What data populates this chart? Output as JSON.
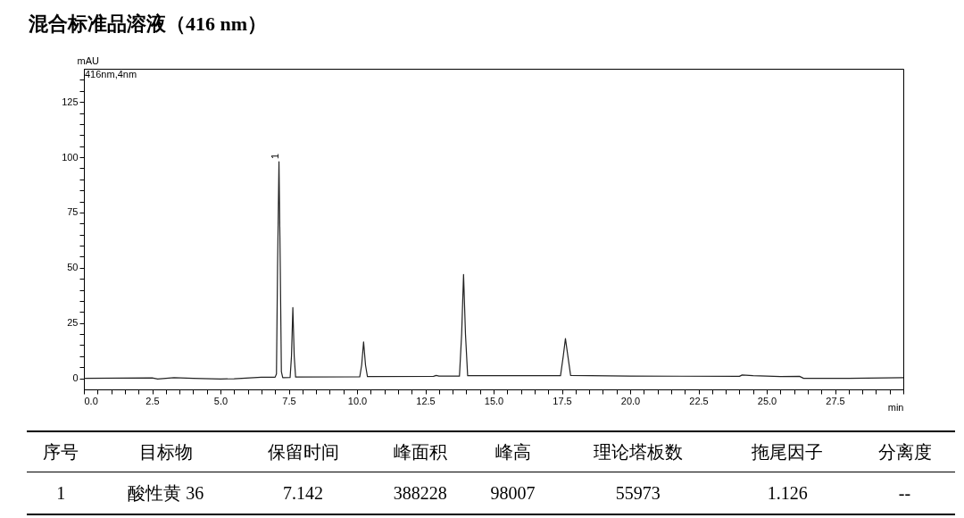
{
  "chart_data": {
    "type": "line",
    "title": "混合标准品溶液（416 nm）",
    "xlabel": "min",
    "ylabel": "mAU",
    "xlim": [
      0,
      30
    ],
    "ylim": [
      -5,
      140
    ],
    "xticks": [
      {
        "value": 0,
        "label": "0.0"
      },
      {
        "value": 0.5,
        "label": null
      },
      {
        "value": 1,
        "label": null
      },
      {
        "value": 1.5,
        "label": null
      },
      {
        "value": 2,
        "label": null
      },
      {
        "value": 2.5,
        "label": "2.5"
      },
      {
        "value": 3,
        "label": null
      },
      {
        "value": 3.5,
        "label": null
      },
      {
        "value": 4,
        "label": null
      },
      {
        "value": 4.5,
        "label": null
      },
      {
        "value": 5,
        "label": "5.0"
      },
      {
        "value": 5.5,
        "label": null
      },
      {
        "value": 6,
        "label": null
      },
      {
        "value": 6.5,
        "label": null
      },
      {
        "value": 7,
        "label": null
      },
      {
        "value": 7.5,
        "label": "7.5"
      },
      {
        "value": 8,
        "label": null
      },
      {
        "value": 8.5,
        "label": null
      },
      {
        "value": 9,
        "label": null
      },
      {
        "value": 9.5,
        "label": null
      },
      {
        "value": 10,
        "label": "10.0"
      },
      {
        "value": 10.5,
        "label": null
      },
      {
        "value": 11,
        "label": null
      },
      {
        "value": 11.5,
        "label": null
      },
      {
        "value": 12,
        "label": null
      },
      {
        "value": 12.5,
        "label": "12.5"
      },
      {
        "value": 13,
        "label": null
      },
      {
        "value": 13.5,
        "label": null
      },
      {
        "value": 14,
        "label": null
      },
      {
        "value": 14.5,
        "label": null
      },
      {
        "value": 15,
        "label": "15.0"
      },
      {
        "value": 15.5,
        "label": null
      },
      {
        "value": 16,
        "label": null
      },
      {
        "value": 16.5,
        "label": null
      },
      {
        "value": 17,
        "label": null
      },
      {
        "value": 17.5,
        "label": "17.5"
      },
      {
        "value": 18,
        "label": null
      },
      {
        "value": 18.5,
        "label": null
      },
      {
        "value": 19,
        "label": null
      },
      {
        "value": 19.5,
        "label": null
      },
      {
        "value": 20,
        "label": "20.0"
      },
      {
        "value": 20.5,
        "label": null
      },
      {
        "value": 21,
        "label": null
      },
      {
        "value": 21.5,
        "label": null
      },
      {
        "value": 22,
        "label": null
      },
      {
        "value": 22.5,
        "label": "22.5"
      },
      {
        "value": 23,
        "label": null
      },
      {
        "value": 23.5,
        "label": null
      },
      {
        "value": 24,
        "label": null
      },
      {
        "value": 24.5,
        "label": null
      },
      {
        "value": 25,
        "label": "25.0"
      },
      {
        "value": 25.5,
        "label": null
      },
      {
        "value": 26,
        "label": null
      },
      {
        "value": 26.5,
        "label": null
      },
      {
        "value": 27,
        "label": null
      },
      {
        "value": 27.5,
        "label": "27.5"
      },
      {
        "value": 28,
        "label": null
      },
      {
        "value": 28.5,
        "label": null
      },
      {
        "value": 29,
        "label": null
      },
      {
        "value": 29.5,
        "label": null
      },
      {
        "value": 30,
        "label": null
      }
    ],
    "yticks": [
      0,
      {
        "value": 5,
        "label": null
      },
      {
        "value": 10,
        "label": null
      },
      {
        "value": 15,
        "label": null
      },
      {
        "value": 20,
        "label": null
      },
      25,
      {
        "value": 30,
        "label": null
      },
      {
        "value": 35,
        "label": null
      },
      {
        "value": 40,
        "label": null
      },
      {
        "value": 45,
        "label": null
      },
      50,
      {
        "value": 55,
        "label": null
      },
      {
        "value": 60,
        "label": null
      },
      {
        "value": 65,
        "label": null
      },
      {
        "value": 70,
        "label": null
      },
      75,
      {
        "value": 80,
        "label": null
      },
      {
        "value": 85,
        "label": null
      },
      {
        "value": 90,
        "label": null
      },
      {
        "value": 95,
        "label": null
      },
      100,
      {
        "value": 105,
        "label": null
      },
      {
        "value": 110,
        "label": null
      },
      {
        "value": 115,
        "label": null
      },
      {
        "value": 120,
        "label": null
      },
      125,
      {
        "value": 130,
        "label": null
      },
      {
        "value": 135,
        "label": null
      }
    ],
    "x": [
      0,
      2.5,
      2.7,
      3.3,
      4,
      5,
      5.5,
      6.5,
      7.0,
      7.05,
      7.09,
      7.142,
      7.19,
      7.23,
      7.28,
      7.55,
      7.6,
      7.65,
      7.7,
      7.75,
      10.1,
      10.17,
      10.24,
      10.31,
      10.38,
      12.8,
      12.9,
      13.0,
      13.75,
      13.83,
      13.9,
      13.97,
      14.05,
      17.45,
      17.55,
      17.63,
      17.72,
      17.82,
      20,
      24.0,
      24.1,
      24.5,
      25.5,
      26.2,
      26.35,
      28,
      30
    ],
    "series": [
      {
        "color": "#222222",
        "values": [
          0,
          0.2,
          -0.3,
          0.3,
          0,
          -0.3,
          -0.2,
          0.5,
          0.5,
          2,
          50,
          98,
          50,
          3,
          0.3,
          0.4,
          10,
          32,
          10,
          0.6,
          0.7,
          6,
          16.5,
          6,
          0.8,
          0.9,
          1.3,
          1.0,
          1.0,
          20,
          47,
          20,
          1.2,
          1.2,
          10,
          18,
          10,
          1.3,
          1.0,
          0.9,
          1.5,
          1.2,
          0.8,
          0.9,
          0,
          0,
          0.3
        ]
      }
    ],
    "annotations": [
      "416nm,4nm",
      {
        "text": "1",
        "x": 7.142,
        "y": 98
      },
      "序号",
      "目标物",
      "保留时间",
      "峰面积",
      "峰高",
      "理论塔板数",
      "拖尾因子",
      "分离度",
      "1",
      "酸性黄 36",
      "7.142",
      "388228",
      "98007",
      "55973",
      "1.126",
      "--"
    ]
  }
}
